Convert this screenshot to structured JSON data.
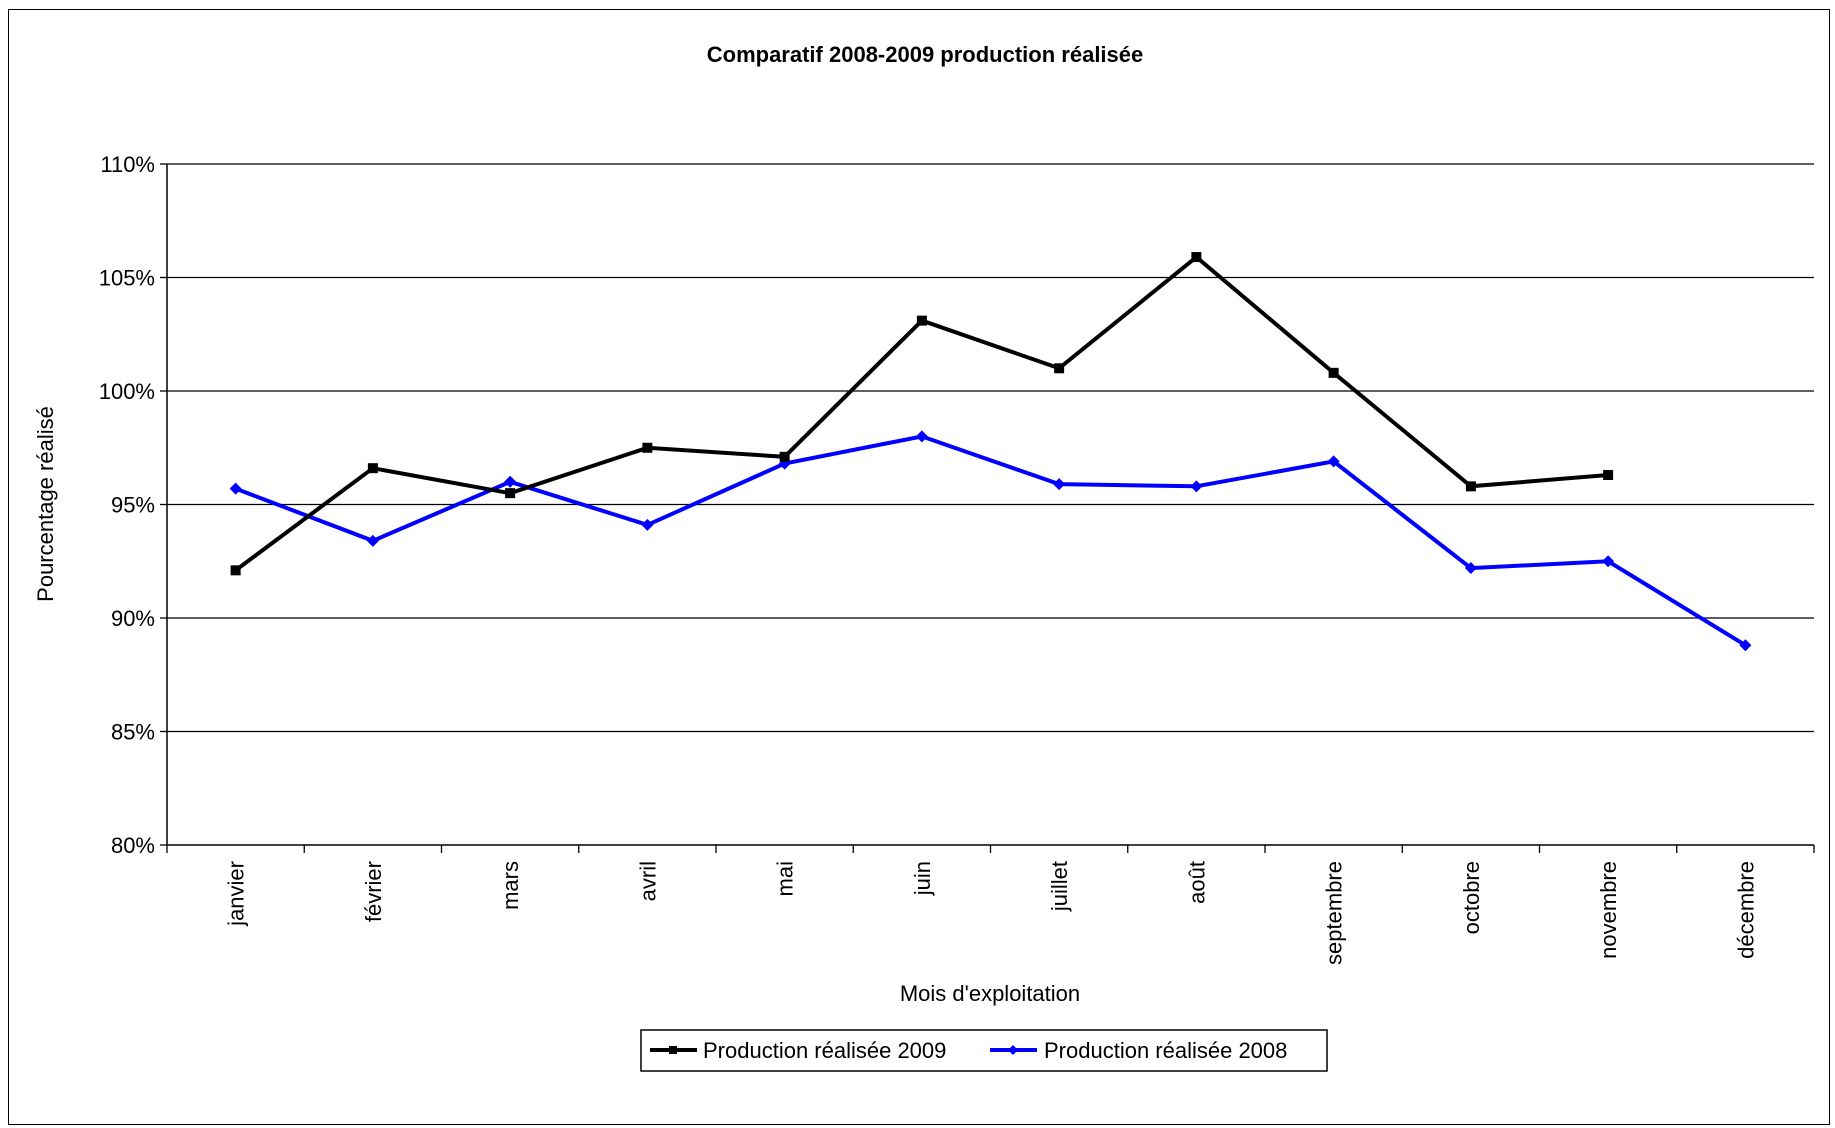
{
  "chart_data": {
    "type": "line",
    "title": "Comparatif 2008-2009 production réalisée",
    "xlabel": "Mois d'exploitation",
    "ylabel": "Pourcentage réalisé",
    "categories": [
      "janvier",
      "février",
      "mars",
      "avril",
      "mai",
      "juin",
      "juillet",
      "août",
      "septembre",
      "octobre",
      "novembre",
      "décembre"
    ],
    "ylim": [
      0.8,
      1.1
    ],
    "yticks": [
      0.8,
      0.85,
      0.9,
      0.95,
      1.0,
      1.05,
      1.1
    ],
    "ytick_labels": [
      "80%",
      "85%",
      "90%",
      "95%",
      "100%",
      "105%",
      "110%"
    ],
    "grid": "horizontal",
    "legend_position": "bottom",
    "series": [
      {
        "name": "Production réalisée 2009",
        "color": "#000000",
        "marker": "square",
        "values": [
          0.921,
          0.966,
          0.955,
          0.975,
          0.971,
          1.031,
          1.01,
          1.059,
          1.008,
          0.958,
          0.963,
          null
        ]
      },
      {
        "name": "Production réalisée 2008",
        "color": "#0000ff",
        "marker": "diamond",
        "values": [
          0.957,
          0.934,
          0.96,
          0.941,
          0.968,
          0.98,
          0.959,
          0.958,
          0.969,
          0.922,
          0.925,
          0.888
        ]
      }
    ]
  }
}
